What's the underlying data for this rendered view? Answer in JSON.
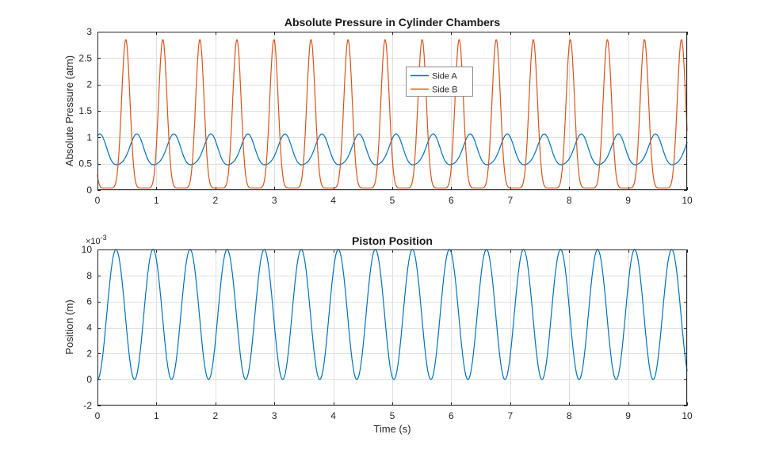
{
  "figure": {
    "background": "#ffffff",
    "axis_color": "#262626",
    "grid_color": "#e0e0e0",
    "legend_border_color": "#8c8c8c"
  },
  "chart_data": [
    {
      "type": "line",
      "title": "Absolute Pressure in Cylinder Chambers",
      "xlabel": "",
      "ylabel": "Absolute Pressure (atm)",
      "xlim": [
        0,
        10
      ],
      "ylim": [
        0,
        3
      ],
      "xticks": [
        0,
        1,
        2,
        3,
        4,
        5,
        6,
        7,
        8,
        9,
        10
      ],
      "xtick_labels": [
        "0",
        "1",
        "2",
        "3",
        "4",
        "5",
        "6",
        "7",
        "8",
        "9",
        "10"
      ],
      "yticks": [
        0,
        0.5,
        1,
        1.5,
        2,
        2.5,
        3
      ],
      "ytick_labels": [
        "0",
        "0.5",
        "1",
        "1.5",
        "2",
        "2.5",
        "3"
      ],
      "grid": true,
      "legend": {
        "position": "north",
        "entries": [
          "Side A",
          "Side B"
        ]
      },
      "sample_step": 0.005,
      "series": [
        {
          "name": "Side A",
          "color": "#0072BD",
          "waveform": {
            "kind": "sum_sines",
            "offset": 0.73,
            "components": [
              {
                "amp": 0.29,
                "omega": 10,
                "phase": 1.25
              },
              {
                "amp": 0.045,
                "omega": 20,
                "phase": 0.6
              }
            ]
          },
          "approx_range_atm": [
            0.45,
            1.05
          ]
        },
        {
          "name": "Side B",
          "color": "#D95319",
          "waveform": {
            "kind": "pulse_train",
            "baseline": 0.04,
            "peak": 2.85,
            "period": 0.6283,
            "first_peak_time": 0.48,
            "sharpness": 4
          },
          "approx_range_atm": [
            0.04,
            2.85
          ]
        }
      ]
    },
    {
      "type": "line",
      "title": "Piston Position",
      "xlabel": "Time (s)",
      "ylabel": "Position (m)",
      "y_multiplier_label": "×10",
      "y_multiplier_exp": "-3",
      "xlim": [
        0,
        10
      ],
      "ylim": [
        -2,
        10
      ],
      "xticks": [
        0,
        1,
        2,
        3,
        4,
        5,
        6,
        7,
        8,
        9,
        10
      ],
      "xtick_labels": [
        "0",
        "1",
        "2",
        "3",
        "4",
        "5",
        "6",
        "7",
        "8",
        "9",
        "10"
      ],
      "yticks": [
        -2,
        0,
        2,
        4,
        6,
        8,
        10
      ],
      "ytick_labels": [
        "-2",
        "0",
        "2",
        "4",
        "6",
        "8",
        "10"
      ],
      "grid": true,
      "sample_step": 0.005,
      "series": [
        {
          "name": "Piston position",
          "color": "#0072BD",
          "waveform": {
            "kind": "one_minus_cos",
            "amp": 5,
            "omega": 10
          },
          "approx_range_milli_m": [
            0,
            10
          ]
        }
      ]
    }
  ]
}
